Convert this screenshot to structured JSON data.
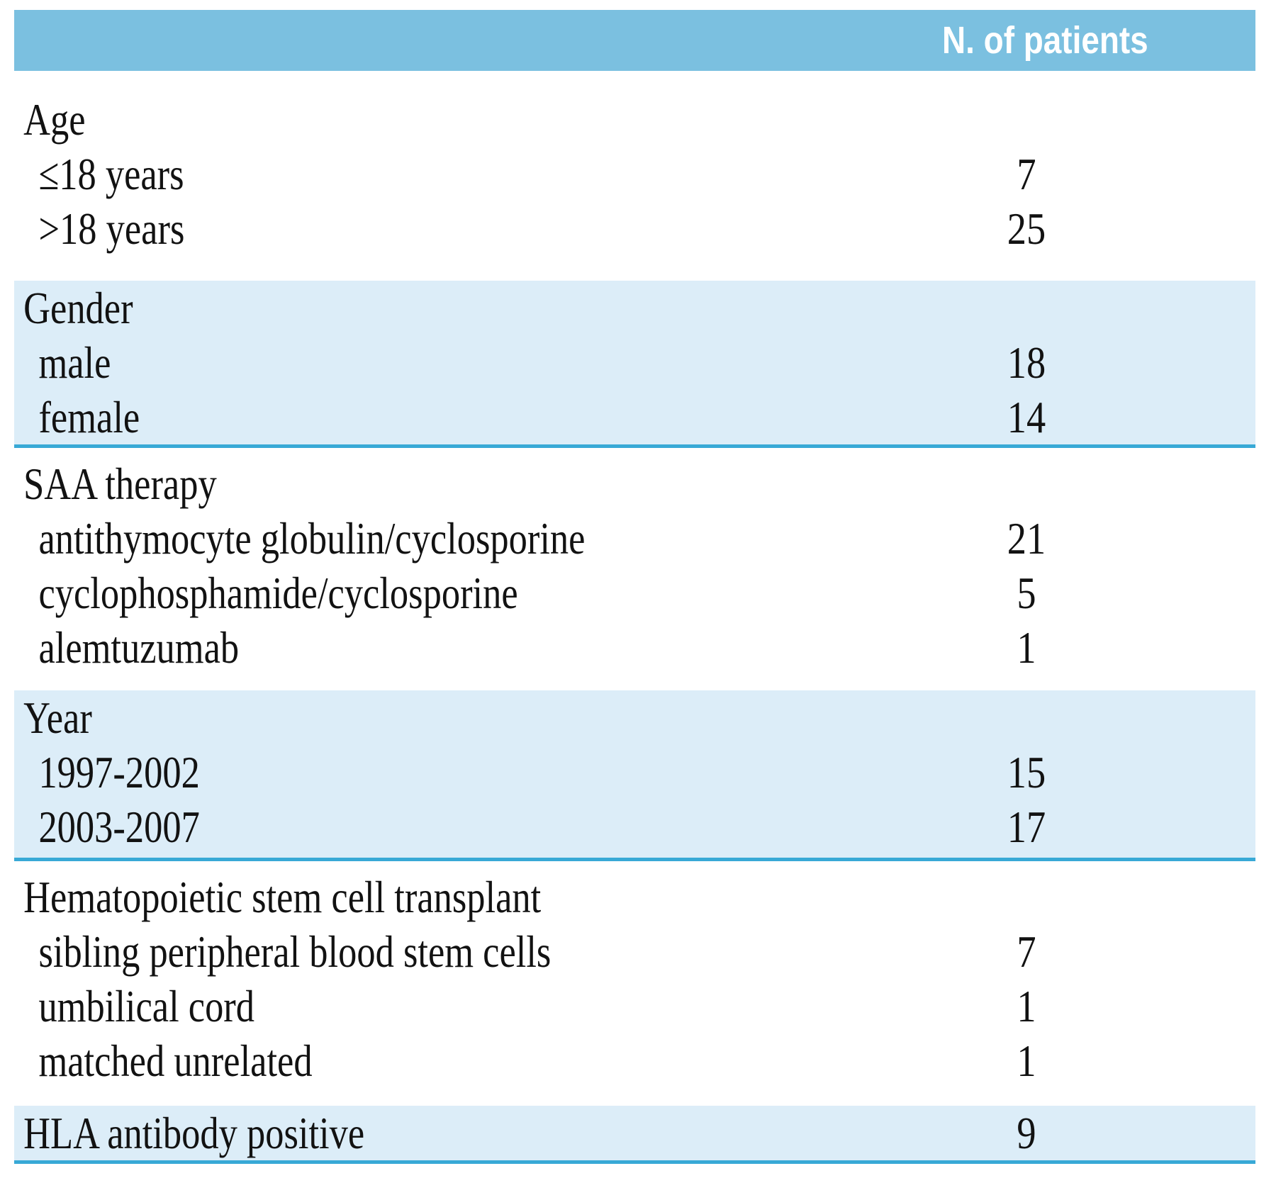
{
  "colors": {
    "header_bg": "#7BC0E0",
    "zebra_row_bg": "#DCEDF8",
    "divider_line": "#38A9D6",
    "header_text": "#FFFFFF",
    "body_text": "#121212"
  },
  "header": {
    "patients_col_label": "N. of patients"
  },
  "sections": [
    {
      "title": "Age",
      "title_value": "",
      "rows": [
        {
          "label": "≤18 years",
          "value": "7"
        },
        {
          "label": ">18 years",
          "value": "25"
        }
      ]
    },
    {
      "title": "Gender",
      "title_value": "",
      "rows": [
        {
          "label": "male",
          "value": "18"
        },
        {
          "label": "female",
          "value": "14"
        }
      ]
    },
    {
      "title": "SAA therapy",
      "title_value": "",
      "rows": [
        {
          "label": "antithymocyte globulin/cyclosporine",
          "value": "21"
        },
        {
          "label": "cyclophosphamide/cyclosporine",
          "value": "5"
        },
        {
          "label": "alemtuzumab",
          "value": "1"
        }
      ]
    },
    {
      "title": "Year",
      "title_value": "",
      "rows": [
        {
          "label": "1997-2002",
          "value": "15"
        },
        {
          "label": "2003-2007",
          "value": "17"
        }
      ]
    },
    {
      "title": "Hematopoietic stem cell transplant",
      "title_value": "",
      "rows": [
        {
          "label": "sibling peripheral blood stem cells",
          "value": "7"
        },
        {
          "label": "umbilical cord",
          "value": "1"
        },
        {
          "label": "matched unrelated",
          "value": "1"
        }
      ]
    },
    {
      "title": "HLA antibody positive",
      "title_value": "9",
      "rows": []
    }
  ]
}
